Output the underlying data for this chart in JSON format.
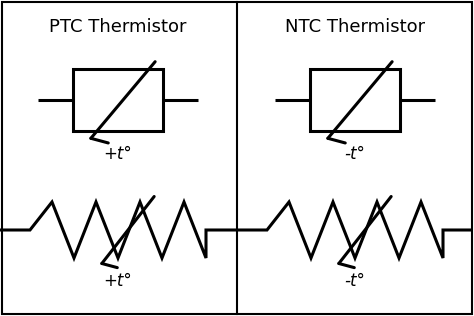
{
  "title_ptc": "PTC Thermistor",
  "title_ntc": "NTC Thermistor",
  "label_ptc": "+t°",
  "label_ntc": "-t°",
  "bg_color": "#ffffff",
  "line_color": "#000000",
  "lw": 2.2,
  "border_lw": 1.5,
  "font_size_title": 13,
  "font_size_label": 12
}
